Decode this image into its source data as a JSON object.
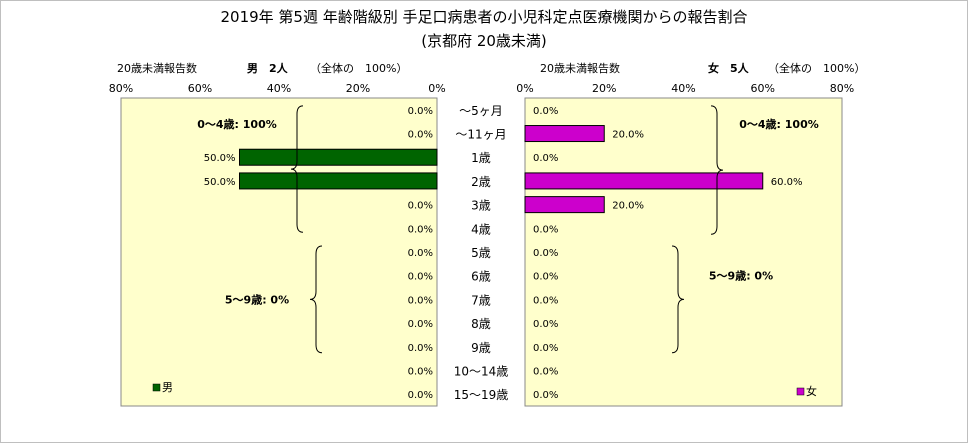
{
  "chart_data": {
    "type": "bar",
    "title": "2019年 第5週 年齢階級別 手足口病患者の小児科定点医療機関からの報告割合",
    "subtitle": "(京都府 20歳未満)",
    "categories": [
      "～5ヶ月",
      "～11ヶ月",
      "1歳",
      "2歳",
      "3歳",
      "4歳",
      "5歳",
      "6歳",
      "7歳",
      "8歳",
      "9歳",
      "10～14歳",
      "15～19歳"
    ],
    "series": [
      {
        "name": "男",
        "values": [
          0,
          0,
          50,
          50,
          0,
          0,
          0,
          0,
          0,
          0,
          0,
          0,
          0
        ],
        "color": "#006400",
        "panel": "left"
      },
      {
        "name": "女",
        "values": [
          0,
          20,
          0,
          60,
          20,
          0,
          0,
          0,
          0,
          0,
          0,
          0,
          0
        ],
        "color": "#cc00cc",
        "panel": "right"
      }
    ],
    "value_labels_left": [
      "0.0%",
      "0.0%",
      "50.0%",
      "50.0%",
      "0.0%",
      "0.0%",
      "0.0%",
      "0.0%",
      "0.0%",
      "0.0%",
      "0.0%",
      "0.0%",
      "0.0%"
    ],
    "value_labels_right": [
      "0.0%",
      "20.0%",
      "0.0%",
      "60.0%",
      "20.0%",
      "0.0%",
      "0.0%",
      "0.0%",
      "0.0%",
      "0.0%",
      "0.0%",
      "0.0%",
      "0.0%"
    ],
    "left_axis_ticks": [
      "80%",
      "60%",
      "40%",
      "20%",
      "0%"
    ],
    "right_axis_ticks": [
      "0%",
      "20%",
      "40%",
      "60%",
      "80%"
    ],
    "xlim": [
      0,
      80
    ],
    "left_header": {
      "axis_label": "20歳未満報告数",
      "sex_label": "男　2人",
      "total_label": "（全体の　100%）"
    },
    "right_header": {
      "axis_label": "20歳未満報告数",
      "sex_label": "女　5人",
      "total_label": "（全体の　100%）"
    },
    "left_annotations": [
      "0～4歳: 100%",
      "5～9歳: 0%"
    ],
    "right_annotations": [
      "0～4歳: 100%",
      "5～9歳: 0%"
    ],
    "legend_left": "男",
    "legend_right": "女",
    "plot_background": "#ffffcc",
    "grid": false
  }
}
